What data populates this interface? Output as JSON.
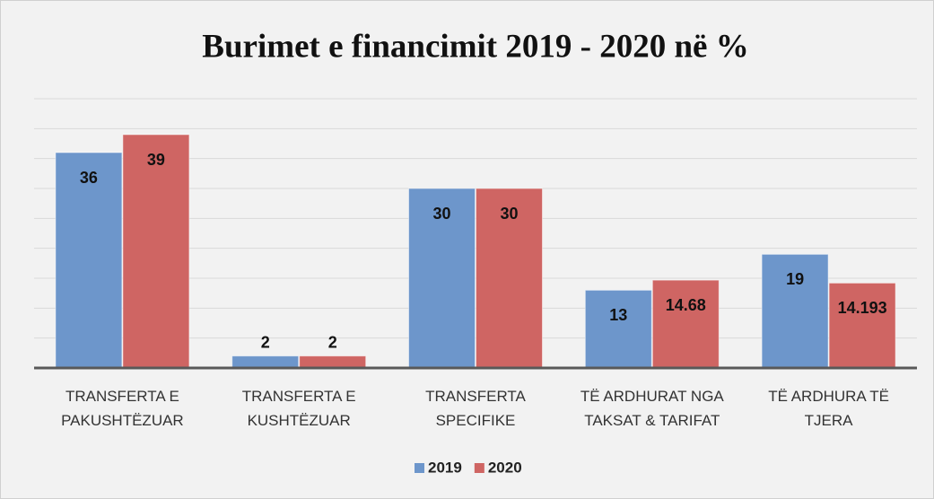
{
  "chart_data": {
    "type": "bar",
    "title": "Burimet e financimit 2019 - 2020 në %",
    "categories": [
      "TRANSFERTA E\nPAKUSHTËZUAR",
      "TRANSFERTA E\nKUSHTËZUAR",
      "TRANSFERTA\nSPECIFIKE",
      "TË ARDHURAT NGA\nTAKSAT & TARIFAT",
      "TË ARDHURA TË\nTJERA"
    ],
    "series": [
      {
        "name": "2019",
        "color": "#6d96cb",
        "values": [
          36,
          2,
          30,
          13,
          19
        ]
      },
      {
        "name": "2020",
        "color": "#cf6563",
        "values": [
          39,
          2,
          30,
          14.68,
          14.193
        ]
      }
    ],
    "ylim": [
      0,
      45
    ],
    "yticks": [
      5,
      10,
      15,
      20,
      25,
      30,
      35,
      40,
      45
    ],
    "grid": true,
    "legend": "bottom"
  }
}
